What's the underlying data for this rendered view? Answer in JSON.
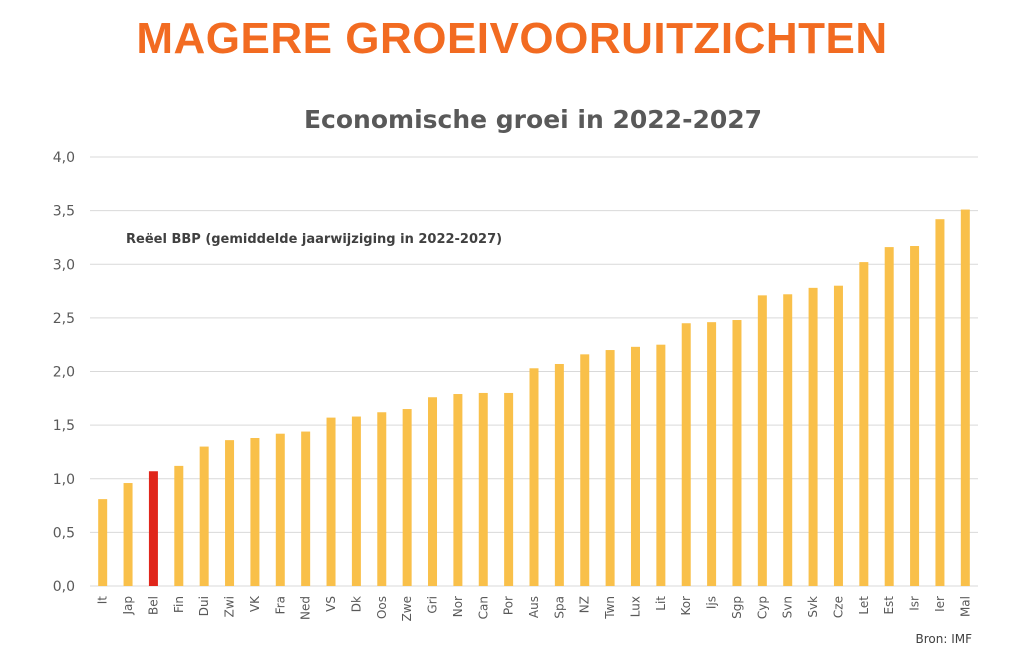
{
  "headline": "MAGERE GROEIVOORUITZICHTEN",
  "colors": {
    "headline": "#f26b21",
    "bar": "#f9c04a",
    "highlight": "#e0261b",
    "grid": "#d9d9d9",
    "text": "#595959"
  },
  "chart_data": {
    "type": "bar",
    "title": "Economische groei in 2022-2027",
    "annotation": "Reëel BBP (gemiddelde jaarwijziging in 2022-2027)",
    "source": "Bron: IMF",
    "ylim": [
      0,
      4
    ],
    "yticks": [
      "0,0",
      "0,5",
      "1,0",
      "1,5",
      "2,0",
      "2,5",
      "3,0",
      "3,5",
      "4,0"
    ],
    "grid": true,
    "highlight_category": "Bel",
    "categories": [
      "It",
      "Jap",
      "Bel",
      "Fin",
      "Dui",
      "Zwi",
      "VK",
      "Fra",
      "Ned",
      "VS",
      "Dk",
      "Oos",
      "Zwe",
      "Gri",
      "Nor",
      "Can",
      "Por",
      "Aus",
      "Spa",
      "NZ",
      "Twn",
      "Lux",
      "Lit",
      "Kor",
      "Ijs",
      "Sgp",
      "Cyp",
      "Svn",
      "Svk",
      "Cze",
      "Let",
      "Est",
      "Isr",
      "Ier",
      "Mal"
    ],
    "values": [
      0.81,
      0.96,
      1.07,
      1.12,
      1.3,
      1.36,
      1.38,
      1.42,
      1.44,
      1.57,
      1.58,
      1.62,
      1.65,
      1.76,
      1.79,
      1.8,
      1.8,
      2.03,
      2.07,
      2.16,
      2.2,
      2.23,
      2.25,
      2.45,
      2.46,
      2.48,
      2.71,
      2.72,
      2.78,
      2.8,
      3.02,
      3.16,
      3.17,
      3.42,
      3.51
    ]
  }
}
